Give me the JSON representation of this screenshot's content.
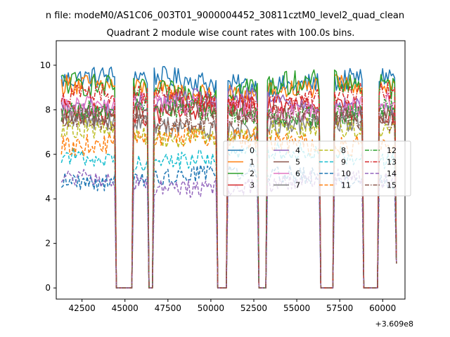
{
  "figure": {
    "suptitle": "n file: modeM0/AS1C06_003T01_9000004452_30811cztM0_level2_quad_clean"
  },
  "chart_data": {
    "type": "line",
    "title": "Quadrant 2 module wise count rates with 100.0s bins.",
    "xlabel": "",
    "ylabel": "",
    "x_offset_label": "+3.609e8",
    "xlim": [
      41000,
      61300
    ],
    "ylim": [
      -0.5,
      11.1
    ],
    "x_ticks": [
      42500,
      45000,
      47500,
      50000,
      52500,
      55000,
      57500,
      60000
    ],
    "x_tick_labels": [
      "42500",
      "45000",
      "47500",
      "50000",
      "52500",
      "55000",
      "57500",
      "60000"
    ],
    "y_ticks": [
      0,
      2,
      4,
      6,
      8,
      10
    ],
    "y_tick_labels": [
      "0",
      "2",
      "4",
      "6",
      "8",
      "10"
    ],
    "bin_seconds": 100,
    "x_start": 41300,
    "x_end": 60800,
    "gaps_zero_intervals": [
      [
        44500,
        45400
      ],
      [
        46400,
        46600
      ],
      [
        50400,
        50900
      ],
      [
        52800,
        53200
      ],
      [
        56400,
        57100
      ],
      [
        58900,
        59700
      ]
    ],
    "legend": {
      "placement": "center-right",
      "ncol": 4
    },
    "series": [
      {
        "name": "0",
        "base": 9.3,
        "noise": 0.3,
        "color": "#1f77b4",
        "dash": "solid"
      },
      {
        "name": "1",
        "base": 8.9,
        "noise": 0.3,
        "color": "#ff7f0e",
        "dash": "solid"
      },
      {
        "name": "2",
        "base": 9.0,
        "noise": 0.35,
        "color": "#2ca02c",
        "dash": "solid"
      },
      {
        "name": "3",
        "base": 8.0,
        "noise": 0.3,
        "color": "#d62728",
        "dash": "solid"
      },
      {
        "name": "4",
        "base": 8.3,
        "noise": 0.3,
        "color": "#9467bd",
        "dash": "solid"
      },
      {
        "name": "5",
        "base": 7.9,
        "noise": 0.3,
        "color": "#8c564b",
        "dash": "solid"
      },
      {
        "name": "6",
        "base": 8.1,
        "noise": 0.3,
        "color": "#e377c2",
        "dash": "solid"
      },
      {
        "name": "7",
        "base": 7.3,
        "noise": 0.3,
        "color": "#7f7f7f",
        "dash": "solid"
      },
      {
        "name": "8",
        "base": 7.0,
        "noise": 0.3,
        "color": "#bcbd22",
        "dash": "dashed"
      },
      {
        "name": "9",
        "base": 5.9,
        "noise": 0.25,
        "color": "#17becf",
        "dash": "dashed"
      },
      {
        "name": "10",
        "base": 5.0,
        "noise": 0.25,
        "color": "#1f77b4",
        "dash": "dashed"
      },
      {
        "name": "11",
        "base": 6.6,
        "noise": 0.3,
        "color": "#ff7f0e",
        "dash": "dashed"
      },
      {
        "name": "12",
        "base": 7.9,
        "noise": 0.3,
        "color": "#2ca02c",
        "dash": "dashdot"
      },
      {
        "name": "13",
        "base": 8.5,
        "noise": 0.3,
        "color": "#d62728",
        "dash": "dashdot"
      },
      {
        "name": "14",
        "base": 4.7,
        "noise": 0.25,
        "color": "#9467bd",
        "dash": "dashed"
      },
      {
        "name": "15",
        "base": 7.6,
        "noise": 0.3,
        "color": "#8c564b",
        "dash": "dashdot"
      }
    ]
  }
}
